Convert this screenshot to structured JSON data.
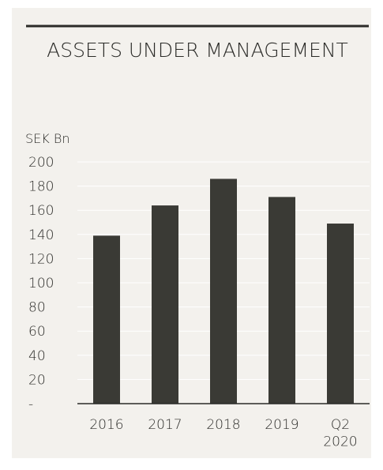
{
  "chart_data": {
    "type": "bar",
    "title": "ASSETS UNDER MANAGEMENT",
    "y_axis_label": "SEK Bn",
    "categories": [
      "2016",
      "2017",
      "2018",
      "2019",
      "Q2\n2020"
    ],
    "values": [
      139,
      164,
      186,
      171,
      149
    ],
    "color": "#3a3a35",
    "ylim": [
      0,
      200
    ],
    "yticks": [
      {
        "value": 0,
        "label": "-"
      },
      20,
      40,
      60,
      80,
      100,
      120,
      140,
      160,
      180,
      200
    ],
    "grid": true
  }
}
